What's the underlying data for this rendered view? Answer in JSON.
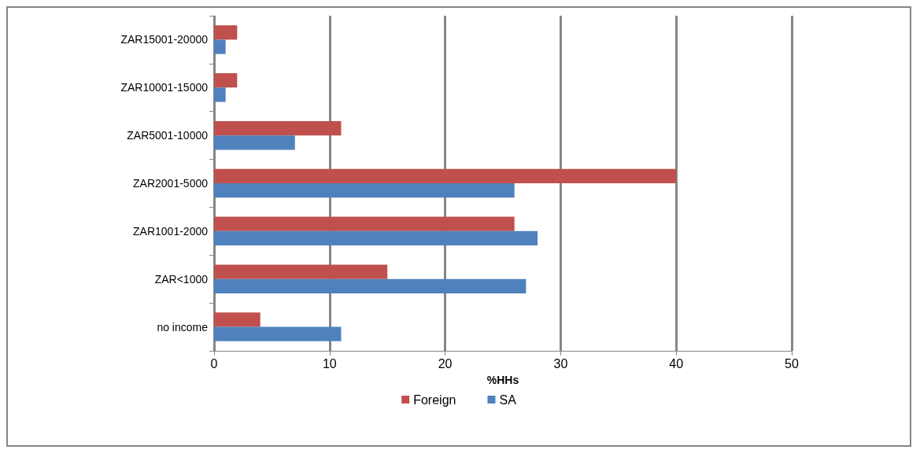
{
  "chart_data": {
    "type": "bar",
    "orientation": "horizontal",
    "xlabel": "%HHs",
    "categories": [
      "ZAR15001-20000",
      "ZAR10001-15000",
      "ZAR5001-10000",
      "ZAR2001-5000",
      "ZAR1001-2000",
      "ZAR<1000",
      "no income"
    ],
    "series": [
      {
        "name": "Foreign",
        "color": "#c0504d",
        "values": [
          2,
          2,
          11,
          40,
          26,
          15,
          4
        ]
      },
      {
        "name": "SA",
        "color": "#4f81bd",
        "values": [
          1,
          1,
          7,
          26,
          28,
          27,
          11
        ]
      }
    ],
    "xlim": [
      0,
      50
    ],
    "xticks": [
      0,
      10,
      20,
      30,
      40,
      50
    ],
    "grid": "x",
    "legend": "bottom"
  }
}
